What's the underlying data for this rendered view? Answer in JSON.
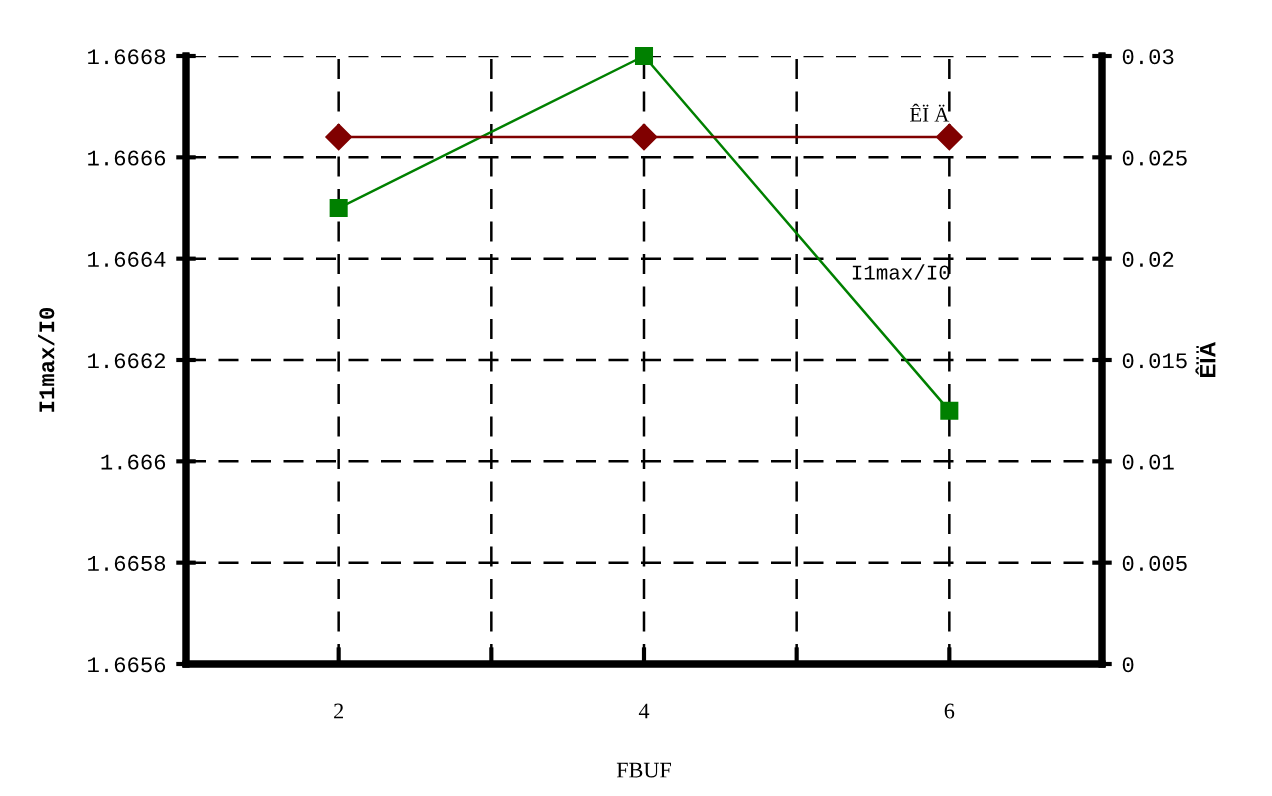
{
  "chart_data": {
    "type": "line",
    "xlabel": "FBUF",
    "ylabel": "I1max/I0",
    "y2label": "ÊÏÄ",
    "x": [
      2,
      4,
      6
    ],
    "series": [
      {
        "name": "I1max/I0",
        "color": "#008000",
        "values": [
          1.6665,
          1.6668,
          1.6661
        ],
        "marker": "square"
      },
      {
        "name": "ÊÏ Ä",
        "color": "#800000",
        "values": [
          0.026,
          0.026,
          0.026
        ],
        "axis": "y2",
        "marker": "diamond"
      }
    ],
    "xlim": [
      1,
      7
    ],
    "xticks": [
      {
        "value": 1,
        "label": null
      },
      2,
      {
        "value": 3,
        "label": null
      },
      4,
      {
        "value": 5,
        "label": null
      },
      6,
      {
        "value": 7,
        "label": null
      }
    ],
    "ylim": [
      1.6656,
      1.6668
    ],
    "yticks": [
      1.6656,
      1.6658,
      1.666,
      1.6662,
      1.6664,
      1.6666,
      1.6668
    ],
    "y2lim": [
      0,
      0.03
    ],
    "y2ticks": [
      0,
      0.005,
      0.01,
      0.015,
      0.02,
      0.025,
      0.03
    ],
    "grid": true,
    "legend": false,
    "line_style": "solid"
  }
}
